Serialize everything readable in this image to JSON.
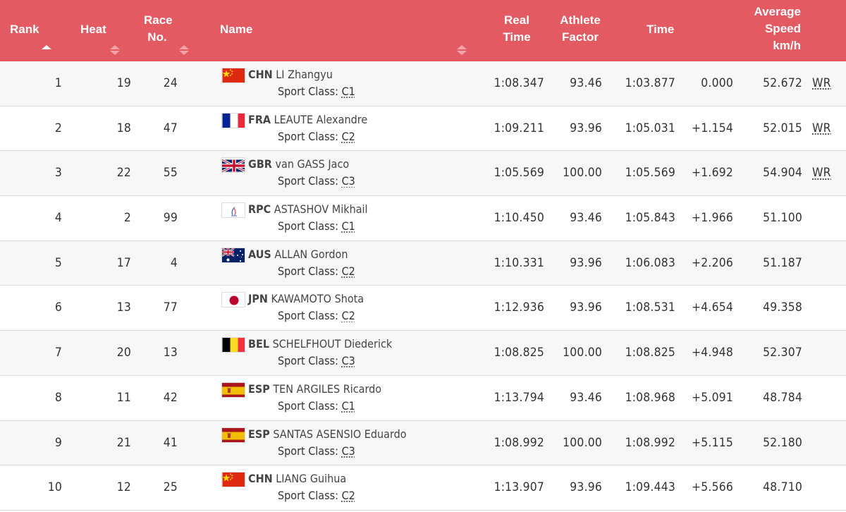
{
  "header": {
    "rank": "Rank",
    "heat": "Heat",
    "race_no": [
      "Race",
      "No."
    ],
    "name": "Name",
    "real_time": [
      "Real",
      "Time"
    ],
    "athlete_factor": [
      "Athlete",
      "Factor"
    ],
    "time": "Time",
    "avg_speed": [
      "Average",
      "Speed",
      "km/h"
    ]
  },
  "sort_class_prefix": "Sport Class:",
  "rows": [
    {
      "rank": "1",
      "heat": "19",
      "race_no": "24",
      "noc": "CHN",
      "athlete": "LI Zhangyu",
      "sport_class": "C1",
      "real_time": "1:08.347",
      "factor": "93.46",
      "time": "1:03.877",
      "behind": "0.000",
      "speed": "52.672",
      "record": "WR",
      "flag": "CHN"
    },
    {
      "rank": "2",
      "heat": "18",
      "race_no": "47",
      "noc": "FRA",
      "athlete": "LEAUTE Alexandre",
      "sport_class": "C2",
      "real_time": "1:09.211",
      "factor": "93.96",
      "time": "1:05.031",
      "behind": "+1.154",
      "speed": "52.015",
      "record": "WR",
      "flag": "FRA"
    },
    {
      "rank": "3",
      "heat": "22",
      "race_no": "55",
      "noc": "GBR",
      "athlete": "van GASS Jaco",
      "sport_class": "C3",
      "real_time": "1:05.569",
      "factor": "100.00",
      "time": "1:05.569",
      "behind": "+1.692",
      "speed": "54.904",
      "record": "WR",
      "flag": "GBR"
    },
    {
      "rank": "4",
      "heat": "2",
      "race_no": "99",
      "noc": "RPC",
      "athlete": "ASTASHOV Mikhail",
      "sport_class": "C1",
      "real_time": "1:10.450",
      "factor": "93.46",
      "time": "1:05.843",
      "behind": "+1.966",
      "speed": "51.100",
      "record": "",
      "flag": "RPC"
    },
    {
      "rank": "5",
      "heat": "17",
      "race_no": "4",
      "noc": "AUS",
      "athlete": "ALLAN Gordon",
      "sport_class": "C2",
      "real_time": "1:10.331",
      "factor": "93.96",
      "time": "1:06.083",
      "behind": "+2.206",
      "speed": "51.187",
      "record": "",
      "flag": "AUS"
    },
    {
      "rank": "6",
      "heat": "13",
      "race_no": "77",
      "noc": "JPN",
      "athlete": "KAWAMOTO Shota",
      "sport_class": "C2",
      "real_time": "1:12.936",
      "factor": "93.96",
      "time": "1:08.531",
      "behind": "+4.654",
      "speed": "49.358",
      "record": "",
      "flag": "JPN"
    },
    {
      "rank": "7",
      "heat": "20",
      "race_no": "13",
      "noc": "BEL",
      "athlete": "SCHELFHOUT Diederick",
      "sport_class": "C3",
      "real_time": "1:08.825",
      "factor": "100.00",
      "time": "1:08.825",
      "behind": "+4.948",
      "speed": "52.307",
      "record": "",
      "flag": "BEL"
    },
    {
      "rank": "8",
      "heat": "11",
      "race_no": "42",
      "noc": "ESP",
      "athlete": "TEN ARGILES Ricardo",
      "sport_class": "C1",
      "real_time": "1:13.794",
      "factor": "93.46",
      "time": "1:08.968",
      "behind": "+5.091",
      "speed": "48.784",
      "record": "",
      "flag": "ESP"
    },
    {
      "rank": "9",
      "heat": "21",
      "race_no": "41",
      "noc": "ESP",
      "athlete": "SANTAS ASENSIO Eduardo",
      "sport_class": "C3",
      "real_time": "1:08.992",
      "factor": "100.00",
      "time": "1:08.992",
      "behind": "+5.115",
      "speed": "52.180",
      "record": "",
      "flag": "ESP"
    },
    {
      "rank": "10",
      "heat": "12",
      "race_no": "25",
      "noc": "CHN",
      "athlete": "LIANG Guihua",
      "sport_class": "C2",
      "real_time": "1:13.907",
      "factor": "93.96",
      "time": "1:09.443",
      "behind": "+5.566",
      "speed": "48.710",
      "record": "",
      "flag": "CHN"
    }
  ],
  "colors": {
    "header_bg": "#e35a63",
    "row_alt": "#f7f7f7",
    "text": "#333333"
  }
}
